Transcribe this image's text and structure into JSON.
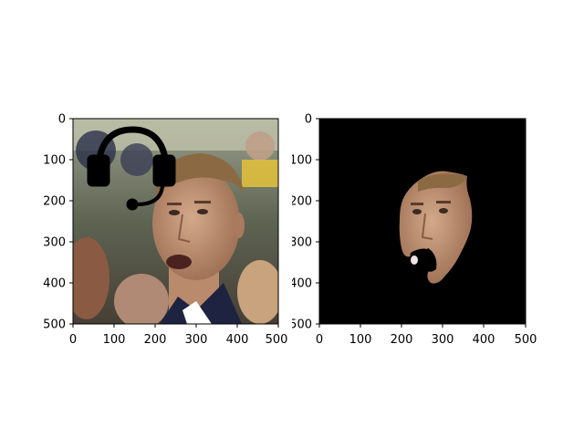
{
  "figure": {
    "panels": [
      {
        "id": "left",
        "content": "photo of a young man with short light hair, mouth slightly open, in a crowded indoor arena; a black headset icon is drawn over the upper-left",
        "overlay_icon": "headset-icon",
        "x_ticks": [
          "0",
          "100",
          "200",
          "300",
          "400",
          "500"
        ],
        "y_ticks": [
          "0",
          "100",
          "200",
          "300",
          "400",
          "500"
        ]
      },
      {
        "id": "right",
        "content": "same face segmented and shown on a black background; the open mouth region is masked out in black",
        "background": "#000000",
        "x_ticks": [
          "0",
          "100",
          "200",
          "300",
          "400",
          "500"
        ],
        "y_ticks": [
          "0",
          "100",
          "200",
          "300",
          "400",
          "500"
        ]
      }
    ]
  },
  "colors": {
    "skin": "#c99a7c",
    "hair": "#8b6a43",
    "shirt": "#1d2340",
    "crowd_bg": "#6b7060",
    "mask_bg": "#000000"
  }
}
